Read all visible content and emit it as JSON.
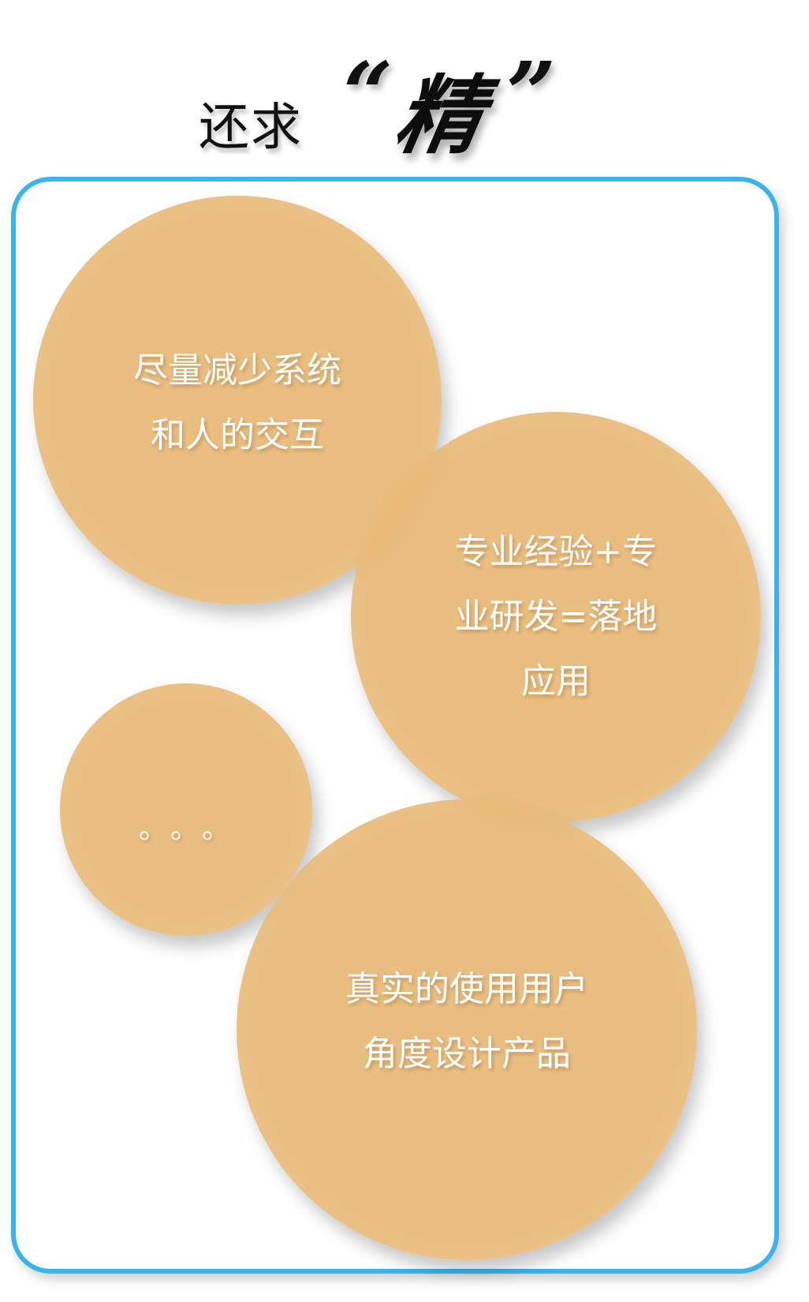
{
  "heading": {
    "prefix": "还求",
    "quote_open": "“",
    "emphasis": "精",
    "quote_close": "”"
  },
  "bubbles": {
    "reduce": {
      "lines": [
        "尽量减少系统",
        "和人的交互"
      ]
    },
    "pro": {
      "lines": [
        "专业经验+专",
        "业研发=落地",
        "应用"
      ]
    },
    "more": {
      "text": "。。。"
    },
    "user": {
      "lines": [
        "真实的使用用户",
        "角度设计产品"
      ]
    }
  },
  "colors": {
    "panel_border": "#3ab4ec",
    "bubble_fill": "#e8b976",
    "bubble_text": "#ffffff",
    "heading_text": "#111111"
  }
}
